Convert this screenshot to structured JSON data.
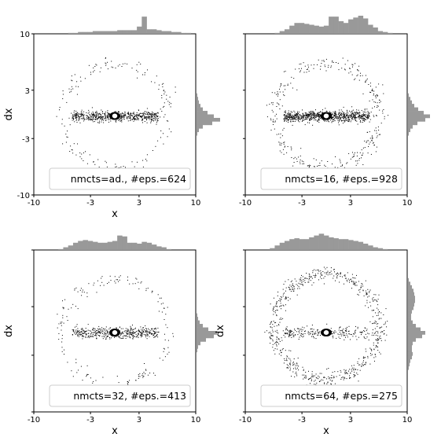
{
  "chart_data": [
    {
      "type": "scatter",
      "xlabel": "x",
      "ylabel": "dx",
      "xlim": [
        -10,
        10
      ],
      "ylim": [
        -10,
        10
      ],
      "xticks": [
        "-10",
        "-3",
        "3",
        "10"
      ],
      "yticks": [
        "10",
        "3",
        "-3",
        "-10"
      ],
      "show_yticks": true,
      "legend": "nmcts=ad., #eps.=624",
      "legend_loc": "lower right",
      "marginal_top": "histogram",
      "marginal_right": "histogram",
      "marker_color": "#000000",
      "hist_color": "#999999"
    },
    {
      "type": "scatter",
      "xlabel": "",
      "ylabel": "",
      "xlim": [
        -10,
        10
      ],
      "ylim": [
        -10,
        10
      ],
      "xticks": [
        "-10",
        "-3",
        "3",
        "10"
      ],
      "yticks": [],
      "show_yticks": false,
      "legend": "nmcts=16, #eps.=928",
      "legend_loc": "lower right",
      "marginal_top": "histogram",
      "marginal_right": "histogram",
      "marker_color": "#000000",
      "hist_color": "#999999"
    },
    {
      "type": "scatter",
      "xlabel": "x",
      "ylabel": "dx",
      "xlim": [
        -10,
        10
      ],
      "ylim": [
        -10,
        10
      ],
      "xticks": [
        "-10",
        "-3",
        "3",
        "10"
      ],
      "yticks": [],
      "show_yticks": false,
      "legend": "nmcts=32, #eps.=413",
      "legend_loc": "lower right",
      "marginal_top": "histogram",
      "marginal_right": "histogram",
      "marker_color": "#000000",
      "hist_color": "#999999"
    },
    {
      "type": "scatter",
      "xlabel": "x",
      "ylabel": "dx",
      "xlim": [
        -10,
        10
      ],
      "ylim": [
        -10,
        10
      ],
      "xticks": [
        "-10",
        "-3",
        "3",
        "10"
      ],
      "yticks": [],
      "show_yticks": false,
      "legend": "nmcts=64, #eps.=275",
      "legend_loc": "lower right",
      "marginal_top": "histogram",
      "marginal_right": "histogram",
      "marker_color": "#000000",
      "hist_color": "#999999"
    }
  ]
}
